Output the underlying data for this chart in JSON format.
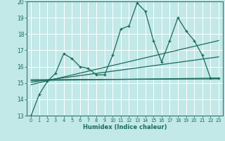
{
  "title": "",
  "xlabel": "Humidex (Indice chaleur)",
  "bg_color": "#c2e8e8",
  "grid_color": "#ffffff",
  "line_color": "#1a6b5a",
  "xlim": [
    -0.5,
    23.5
  ],
  "ylim": [
    13,
    20
  ],
  "yticks": [
    13,
    14,
    15,
    16,
    17,
    18,
    19,
    20
  ],
  "xticks": [
    0,
    1,
    2,
    3,
    4,
    5,
    6,
    7,
    8,
    9,
    10,
    11,
    12,
    13,
    14,
    15,
    16,
    17,
    18,
    19,
    20,
    21,
    22,
    23
  ],
  "main_x": [
    0,
    1,
    2,
    3,
    4,
    5,
    6,
    7,
    8,
    9,
    10,
    11,
    12,
    13,
    14,
    15,
    16,
    17,
    18,
    19,
    20,
    21,
    22,
    23
  ],
  "main_y": [
    13.0,
    14.3,
    15.1,
    15.6,
    16.8,
    16.5,
    16.0,
    15.9,
    15.5,
    15.5,
    16.7,
    18.3,
    18.5,
    19.9,
    19.4,
    17.6,
    16.3,
    17.6,
    19.0,
    18.2,
    17.6,
    16.7,
    15.3,
    15.3
  ],
  "trend1_y_start": 15.15,
  "trend1_y_end": 15.3,
  "trend2_y_start": 14.9,
  "trend2_y_end": 17.6,
  "trend3_y_start": 15.05,
  "trend3_y_end": 16.6,
  "trend4_y_start": 15.2,
  "trend4_y_end": 15.25
}
